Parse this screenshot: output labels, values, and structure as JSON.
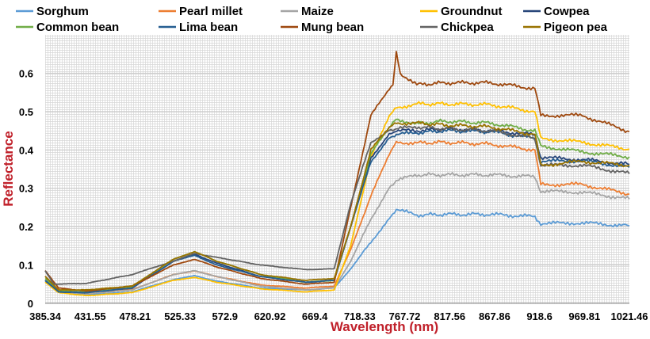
{
  "chart_data": {
    "type": "line",
    "xlabel": "Wavelength (nm)",
    "ylabel": "Reflectance",
    "axis_title_color": "#c0202a",
    "x_tick_labels": [
      "385.34",
      "431.55",
      "478.21",
      "525.33",
      "572.9",
      "620.92",
      "669.4",
      "718.33",
      "767.72",
      "817.56",
      "867.86",
      "918.6",
      "969.81",
      "1021.46"
    ],
    "xlim": [
      385.34,
      1021.46
    ],
    "ylim": [
      0,
      0.7
    ],
    "y_ticks": [
      0,
      0.1,
      0.2,
      0.3,
      0.4,
      0.5,
      0.6
    ],
    "y_tick_labels": [
      "0",
      "0.1",
      "0.2",
      "0.3",
      "0.4",
      "0.5",
      "0.6"
    ],
    "grid": "dense light-gray",
    "legend": "top, 2 rows",
    "series": [
      {
        "name": "Sorghum",
        "color": "#5b9bd5",
        "points": [
          [
            385.34,
            0.06
          ],
          [
            400,
            0.03
          ],
          [
            430,
            0.022
          ],
          [
            480,
            0.03
          ],
          [
            525,
            0.062
          ],
          [
            548,
            0.072
          ],
          [
            572,
            0.058
          ],
          [
            620,
            0.04
          ],
          [
            669,
            0.035
          ],
          [
            700,
            0.04
          ],
          [
            718,
            0.09
          ],
          [
            740,
            0.16
          ],
          [
            760,
            0.22
          ],
          [
            767.72,
            0.245
          ],
          [
            790,
            0.23
          ],
          [
            820,
            0.232
          ],
          [
            870,
            0.232
          ],
          [
            918.6,
            0.226
          ],
          [
            925,
            0.208
          ],
          [
            970,
            0.21
          ],
          [
            1021.46,
            0.202
          ]
        ]
      },
      {
        "name": "Pearl millet",
        "color": "#ed7d31",
        "points": [
          [
            385.34,
            0.07
          ],
          [
            400,
            0.035
          ],
          [
            430,
            0.028
          ],
          [
            480,
            0.036
          ],
          [
            525,
            0.075
          ],
          [
            548,
            0.085
          ],
          [
            572,
            0.07
          ],
          [
            620,
            0.048
          ],
          [
            669,
            0.04
          ],
          [
            700,
            0.045
          ],
          [
            718,
            0.14
          ],
          [
            740,
            0.28
          ],
          [
            760,
            0.39
          ],
          [
            767.72,
            0.42
          ],
          [
            790,
            0.418
          ],
          [
            820,
            0.42
          ],
          [
            870,
            0.415
          ],
          [
            918.6,
            0.4
          ],
          [
            925,
            0.31
          ],
          [
            970,
            0.31
          ],
          [
            1021.46,
            0.285
          ]
        ]
      },
      {
        "name": "Maize",
        "color": "#a5a5a5",
        "points": [
          [
            385.34,
            0.06
          ],
          [
            400,
            0.03
          ],
          [
            430,
            0.025
          ],
          [
            480,
            0.035
          ],
          [
            525,
            0.075
          ],
          [
            548,
            0.085
          ],
          [
            572,
            0.07
          ],
          [
            620,
            0.045
          ],
          [
            669,
            0.035
          ],
          [
            700,
            0.04
          ],
          [
            718,
            0.11
          ],
          [
            740,
            0.22
          ],
          [
            760,
            0.3
          ],
          [
            767.72,
            0.32
          ],
          [
            790,
            0.335
          ],
          [
            820,
            0.335
          ],
          [
            870,
            0.335
          ],
          [
            918.6,
            0.33
          ],
          [
            925,
            0.292
          ],
          [
            970,
            0.29
          ],
          [
            1021.46,
            0.272
          ]
        ]
      },
      {
        "name": "Groundnut",
        "color": "#ffc000",
        "points": [
          [
            385.34,
            0.055
          ],
          [
            400,
            0.028
          ],
          [
            430,
            0.02
          ],
          [
            480,
            0.028
          ],
          [
            525,
            0.06
          ],
          [
            548,
            0.068
          ],
          [
            572,
            0.055
          ],
          [
            620,
            0.038
          ],
          [
            669,
            0.03
          ],
          [
            700,
            0.035
          ],
          [
            718,
            0.15
          ],
          [
            740,
            0.38
          ],
          [
            760,
            0.49
          ],
          [
            767.72,
            0.51
          ],
          [
            790,
            0.52
          ],
          [
            820,
            0.52
          ],
          [
            870,
            0.518
          ],
          [
            918.6,
            0.5
          ],
          [
            925,
            0.43
          ],
          [
            970,
            0.42
          ],
          [
            1021.46,
            0.402
          ]
        ]
      },
      {
        "name": "Cowpea",
        "color": "#264478",
        "points": [
          [
            385.34,
            0.06
          ],
          [
            400,
            0.03
          ],
          [
            430,
            0.028
          ],
          [
            480,
            0.04
          ],
          [
            525,
            0.11
          ],
          [
            548,
            0.128
          ],
          [
            572,
            0.105
          ],
          [
            620,
            0.07
          ],
          [
            669,
            0.055
          ],
          [
            700,
            0.06
          ],
          [
            718,
            0.2
          ],
          [
            740,
            0.38
          ],
          [
            760,
            0.44
          ],
          [
            767.72,
            0.45
          ],
          [
            790,
            0.45
          ],
          [
            820,
            0.455
          ],
          [
            870,
            0.45
          ],
          [
            918.6,
            0.44
          ],
          [
            925,
            0.38
          ],
          [
            970,
            0.375
          ],
          [
            1021.46,
            0.362
          ]
        ]
      },
      {
        "name": "Common bean",
        "color": "#70ad47",
        "points": [
          [
            385.34,
            0.065
          ],
          [
            400,
            0.032
          ],
          [
            430,
            0.03
          ],
          [
            480,
            0.042
          ],
          [
            525,
            0.115
          ],
          [
            548,
            0.135
          ],
          [
            572,
            0.11
          ],
          [
            620,
            0.075
          ],
          [
            669,
            0.055
          ],
          [
            700,
            0.06
          ],
          [
            718,
            0.2
          ],
          [
            740,
            0.39
          ],
          [
            760,
            0.46
          ],
          [
            767.72,
            0.48
          ],
          [
            790,
            0.468
          ],
          [
            820,
            0.475
          ],
          [
            870,
            0.47
          ],
          [
            918.6,
            0.45
          ],
          [
            925,
            0.41
          ],
          [
            970,
            0.395
          ],
          [
            1021.46,
            0.382
          ]
        ]
      },
      {
        "name": "Lima bean",
        "color": "#255e91",
        "points": [
          [
            385.34,
            0.06
          ],
          [
            400,
            0.03
          ],
          [
            430,
            0.028
          ],
          [
            480,
            0.04
          ],
          [
            525,
            0.11
          ],
          [
            548,
            0.125
          ],
          [
            572,
            0.1
          ],
          [
            620,
            0.07
          ],
          [
            669,
            0.055
          ],
          [
            700,
            0.06
          ],
          [
            718,
            0.2
          ],
          [
            740,
            0.37
          ],
          [
            760,
            0.43
          ],
          [
            767.72,
            0.44
          ],
          [
            790,
            0.445
          ],
          [
            820,
            0.45
          ],
          [
            870,
            0.448
          ],
          [
            918.6,
            0.43
          ],
          [
            925,
            0.37
          ],
          [
            970,
            0.372
          ],
          [
            1021.46,
            0.355
          ]
        ]
      },
      {
        "name": "Mung bean",
        "color": "#9e480e",
        "points": [
          [
            385.34,
            0.085
          ],
          [
            400,
            0.04
          ],
          [
            430,
            0.032
          ],
          [
            480,
            0.045
          ],
          [
            525,
            0.1
          ],
          [
            548,
            0.115
          ],
          [
            572,
            0.095
          ],
          [
            620,
            0.065
          ],
          [
            669,
            0.05
          ],
          [
            700,
            0.055
          ],
          [
            718,
            0.25
          ],
          [
            740,
            0.49
          ],
          [
            760,
            0.56
          ],
          [
            764,
            0.57
          ],
          [
            767.72,
            0.655
          ],
          [
            772,
            0.6
          ],
          [
            790,
            0.57
          ],
          [
            820,
            0.575
          ],
          [
            870,
            0.575
          ],
          [
            918.6,
            0.56
          ],
          [
            925,
            0.49
          ],
          [
            970,
            0.49
          ],
          [
            1021.46,
            0.448
          ]
        ]
      },
      {
        "name": "Chickpea",
        "color": "#636363",
        "points": [
          [
            385.34,
            0.085
          ],
          [
            395,
            0.05
          ],
          [
            430,
            0.052
          ],
          [
            480,
            0.075
          ],
          [
            525,
            0.11
          ],
          [
            548,
            0.13
          ],
          [
            572,
            0.12
          ],
          [
            620,
            0.1
          ],
          [
            669,
            0.088
          ],
          [
            700,
            0.09
          ],
          [
            718,
            0.26
          ],
          [
            740,
            0.42
          ],
          [
            760,
            0.45
          ],
          [
            767.72,
            0.455
          ],
          [
            790,
            0.46
          ],
          [
            820,
            0.455
          ],
          [
            870,
            0.45
          ],
          [
            918.6,
            0.43
          ],
          [
            925,
            0.36
          ],
          [
            970,
            0.36
          ],
          [
            1021.46,
            0.338
          ]
        ]
      },
      {
        "name": "Pigeon pea",
        "color": "#997300",
        "points": [
          [
            385.34,
            0.07
          ],
          [
            400,
            0.035
          ],
          [
            430,
            0.035
          ],
          [
            480,
            0.045
          ],
          [
            525,
            0.115
          ],
          [
            548,
            0.135
          ],
          [
            572,
            0.11
          ],
          [
            620,
            0.075
          ],
          [
            669,
            0.06
          ],
          [
            700,
            0.065
          ],
          [
            718,
            0.2
          ],
          [
            740,
            0.4
          ],
          [
            760,
            0.46
          ],
          [
            767.72,
            0.47
          ],
          [
            790,
            0.47
          ],
          [
            820,
            0.465
          ],
          [
            870,
            0.46
          ],
          [
            918.6,
            0.44
          ],
          [
            925,
            0.36
          ],
          [
            970,
            0.37
          ],
          [
            1021.46,
            0.36
          ]
        ]
      }
    ]
  }
}
